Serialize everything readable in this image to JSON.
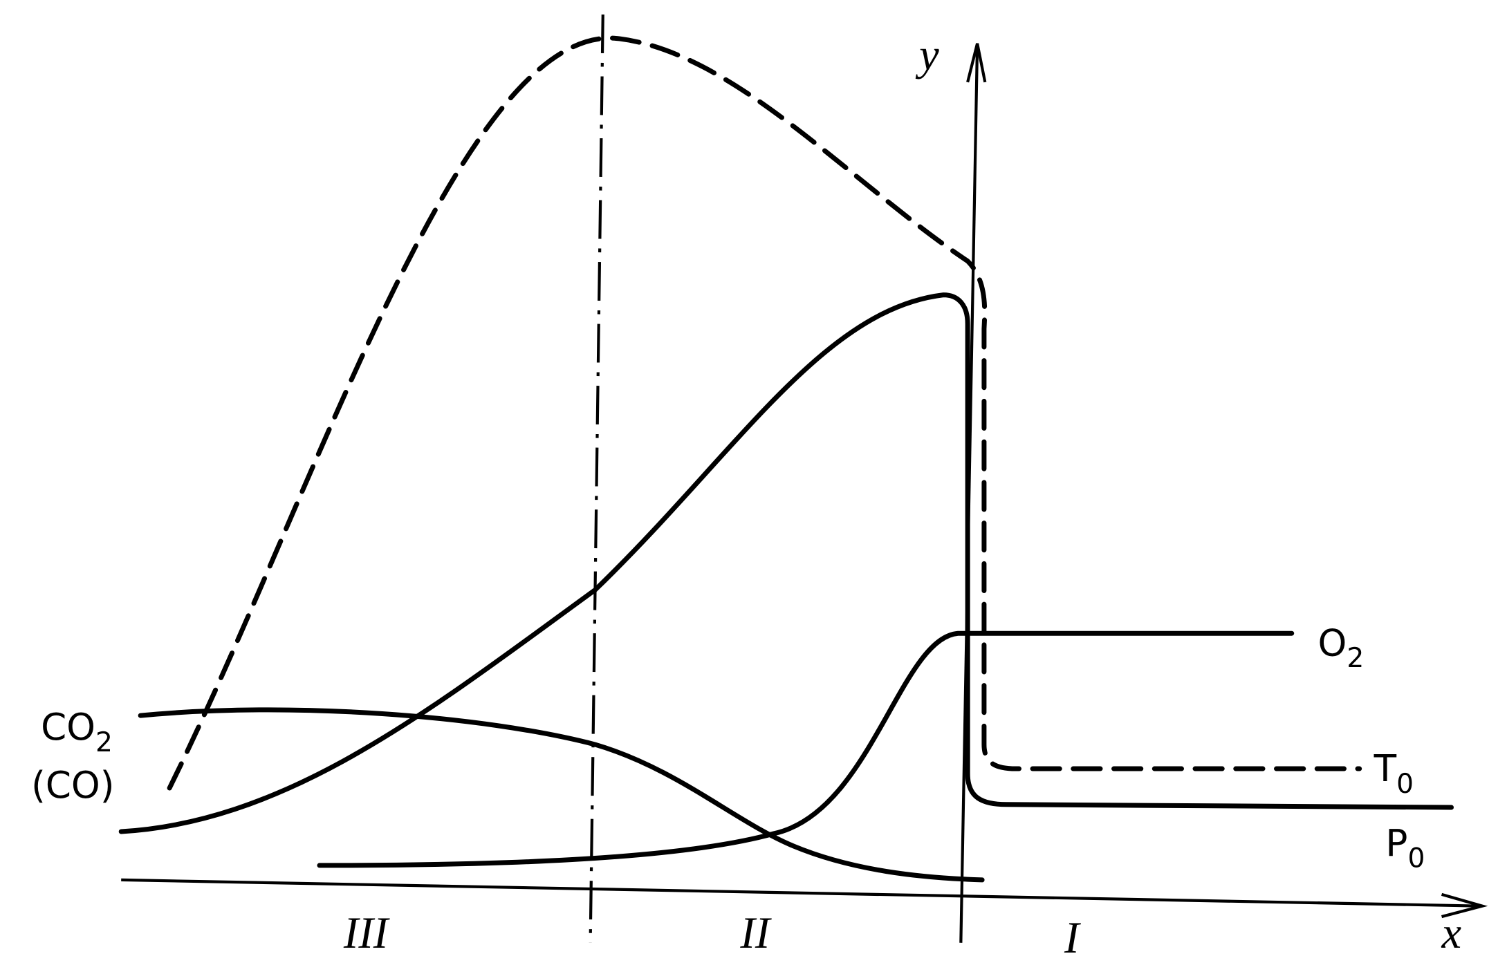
{
  "axes": {
    "y": "y",
    "x": "x"
  },
  "curve_labels": [
    {
      "text": "O",
      "sub": "2"
    },
    {
      "text": "T",
      "sub": "0"
    },
    {
      "text": "P",
      "sub": "0"
    },
    {
      "text": "CO",
      "sub": "2"
    },
    {
      "text": "(CO)"
    }
  ],
  "zones": [
    "III",
    "II",
    "I"
  ]
}
